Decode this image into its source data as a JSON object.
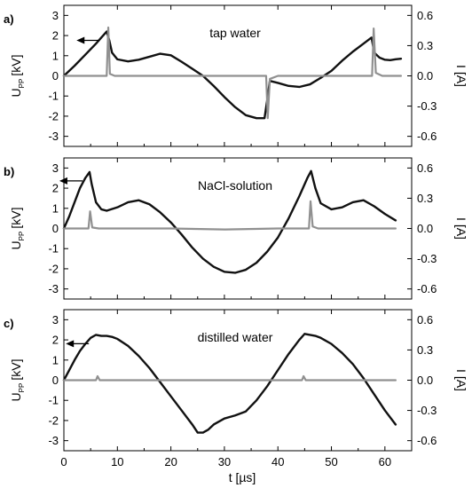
{
  "chart_data": [
    {
      "type": "line",
      "panel_label": "a)",
      "annotation": "tap water",
      "xlabel": "",
      "ylabel_left_main": "U",
      "ylabel_left_sub": "PP",
      "ylabel_left_unit": "[kV]",
      "ylabel_right": "I [A]",
      "xlim": [
        0,
        65
      ],
      "ylim_left": [
        -3.5,
        3.5
      ],
      "ylim_right": [
        -0.7,
        0.7
      ],
      "xticks": [
        "",
        "",
        "",
        "",
        "",
        "",
        ""
      ],
      "yticks_left": [
        "3",
        "2",
        "1",
        "0",
        "-1",
        "-2",
        "-3"
      ],
      "yticks_right": [
        "0.6",
        "0.3",
        "0.0",
        "-0.3",
        "-0.6"
      ],
      "arrow_direction": "left",
      "series": [
        {
          "axis": "left",
          "color": "#111111",
          "x": [
            0,
            2,
            4,
            6,
            7,
            8,
            8.5,
            9,
            10,
            12,
            14,
            16,
            18,
            20,
            22,
            24,
            26,
            28,
            30,
            32,
            34,
            36,
            37.5,
            38,
            38.5,
            40,
            42,
            44,
            46,
            48,
            50,
            52,
            54,
            56,
            57.5,
            58,
            59,
            60,
            61,
            62,
            63
          ],
          "y": [
            0,
            0.5,
            1.05,
            1.6,
            1.9,
            2.2,
            1.75,
            1.15,
            0.82,
            0.72,
            0.8,
            0.95,
            1.1,
            1.02,
            0.7,
            0.35,
            0,
            -0.5,
            -1.05,
            -1.55,
            -1.95,
            -2.1,
            -2.1,
            -1.2,
            -0.25,
            -0.35,
            -0.5,
            -0.55,
            -0.42,
            -0.1,
            0.25,
            0.75,
            1.2,
            1.6,
            1.9,
            1.15,
            0.9,
            0.8,
            0.78,
            0.82,
            0.85
          ]
        },
        {
          "axis": "right",
          "color": "#909090",
          "x": [
            0,
            8,
            8.3,
            8.6,
            9.5,
            12,
            20,
            30,
            37.8,
            38.1,
            38.5,
            40,
            50,
            57.6,
            57.9,
            58.3,
            59.5,
            63
          ],
          "y": [
            0,
            0,
            0.48,
            0.02,
            0,
            0,
            0,
            0,
            0,
            -0.42,
            -0.03,
            0,
            0,
            0,
            0.47,
            0.03,
            0,
            0
          ]
        }
      ]
    },
    {
      "type": "line",
      "panel_label": "b)",
      "annotation": "NaCl-solution",
      "xlabel": "",
      "ylabel_left_main": "U",
      "ylabel_left_sub": "PP",
      "ylabel_left_unit": "[kV]",
      "ylabel_right": "I [A]",
      "xlim": [
        0,
        65
      ],
      "ylim_left": [
        -3.5,
        3.5
      ],
      "ylim_right": [
        -0.7,
        0.7
      ],
      "xticks": [
        "",
        "",
        "",
        "",
        "",
        "",
        ""
      ],
      "yticks_left": [
        "3",
        "2",
        "1",
        "0",
        "-1",
        "-2",
        "-3"
      ],
      "yticks_right": [
        "0.6",
        "0.3",
        "0.0",
        "-0.3",
        "-0.6"
      ],
      "arrow_direction": "left",
      "series": [
        {
          "axis": "left",
          "color": "#111111",
          "x": [
            0,
            1,
            2,
            3,
            4,
            4.8,
            5.2,
            6,
            7,
            8,
            10,
            12,
            14,
            16,
            18,
            20,
            22,
            24,
            26,
            28,
            30,
            32,
            34,
            36,
            38,
            40,
            42,
            44,
            45.5,
            46.2,
            47,
            48,
            50,
            52,
            54,
            56,
            58,
            60,
            62
          ],
          "y": [
            0,
            0.6,
            1.3,
            2.0,
            2.5,
            2.8,
            2.2,
            1.3,
            0.95,
            0.88,
            1.05,
            1.3,
            1.4,
            1.2,
            0.8,
            0.3,
            -0.3,
            -0.95,
            -1.5,
            -1.9,
            -2.15,
            -2.2,
            -2.05,
            -1.7,
            -1.15,
            -0.45,
            0.5,
            1.6,
            2.5,
            2.85,
            2.0,
            1.25,
            0.95,
            1.05,
            1.3,
            1.4,
            1.1,
            0.72,
            0.4
          ]
        },
        {
          "axis": "right",
          "color": "#909090",
          "x": [
            0,
            4.6,
            4.9,
            5.3,
            6.5,
            10,
            20,
            30,
            40,
            45.8,
            46.1,
            46.5,
            47.5,
            55,
            62
          ],
          "y": [
            0,
            0,
            0.17,
            0.01,
            0,
            0,
            0,
            -0.01,
            0,
            0,
            0.27,
            0.02,
            0,
            0,
            0
          ]
        }
      ]
    },
    {
      "type": "line",
      "panel_label": "c)",
      "annotation": "distilled water",
      "xlabel": "t [µs]",
      "ylabel_left_main": "U",
      "ylabel_left_sub": "PP",
      "ylabel_left_unit": "[kV]",
      "ylabel_right": "I [A]",
      "xlim": [
        0,
        65
      ],
      "ylim_left": [
        -3.5,
        3.5
      ],
      "ylim_right": [
        -0.7,
        0.7
      ],
      "xticks": [
        "0",
        "10",
        "20",
        "30",
        "40",
        "50",
        "60"
      ],
      "yticks_left": [
        "3",
        "2",
        "1",
        "0",
        "-1",
        "-2",
        "-3"
      ],
      "yticks_right": [
        "0.6",
        "0.3",
        "0.0",
        "-0.3",
        "-0.6"
      ],
      "arrow_direction": "left",
      "series": [
        {
          "axis": "left",
          "color": "#111111",
          "x": [
            0,
            1,
            2,
            3,
            4,
            5,
            6,
            7,
            8,
            9,
            10,
            12,
            14,
            16,
            18,
            20,
            22,
            24,
            25,
            26,
            27,
            28,
            30,
            32,
            34,
            36,
            38,
            40,
            42,
            44,
            45,
            46,
            47,
            48,
            50,
            52,
            54,
            56,
            58,
            60,
            62
          ],
          "y": [
            0,
            0.5,
            1.0,
            1.45,
            1.8,
            2.1,
            2.25,
            2.2,
            2.2,
            2.15,
            2.05,
            1.7,
            1.2,
            0.6,
            -0.1,
            -0.8,
            -1.5,
            -2.2,
            -2.6,
            -2.6,
            -2.45,
            -2.2,
            -1.9,
            -1.75,
            -1.55,
            -1.0,
            -0.3,
            0.5,
            1.3,
            2.0,
            2.3,
            2.25,
            2.2,
            2.1,
            1.8,
            1.35,
            0.8,
            0.1,
            -0.7,
            -1.5,
            -2.2
          ]
        },
        {
          "axis": "right",
          "color": "#909090",
          "x": [
            0,
            6,
            6.3,
            6.7,
            10,
            20,
            30,
            44.5,
            44.8,
            45.2,
            50,
            62
          ],
          "y": [
            0,
            0,
            0.04,
            0,
            0,
            0,
            0,
            0,
            0.04,
            0,
            0,
            0
          ]
        }
      ]
    }
  ]
}
